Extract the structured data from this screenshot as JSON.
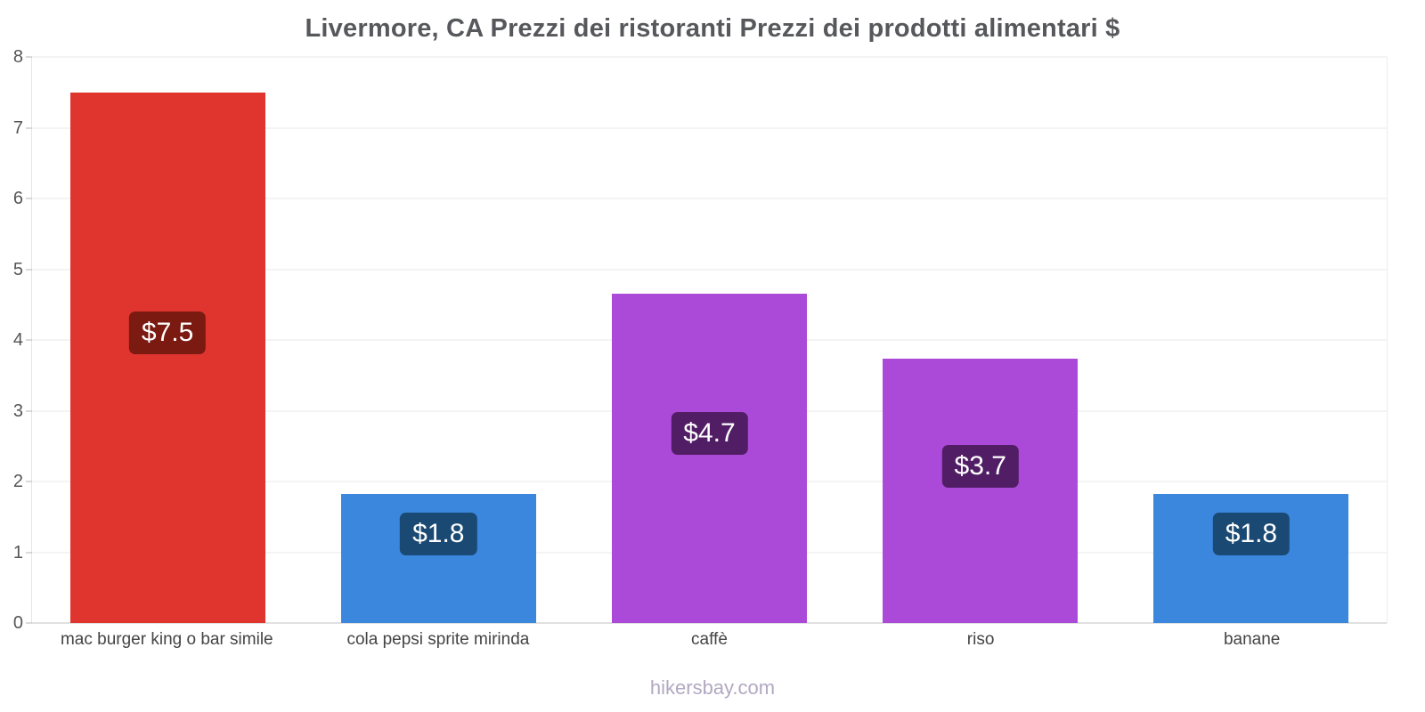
{
  "footer": "hikersbay.com",
  "chart_data": {
    "type": "bar",
    "title": "Livermore, CA Prezzi dei ristoranti Prezzi dei prodotti alimentari $",
    "categories": [
      "mac burger king o bar simile",
      "cola pepsi sprite mirinda",
      "caffè",
      "riso",
      "banane"
    ],
    "values": [
      7.5,
      1.82,
      4.65,
      3.73,
      1.82
    ],
    "labels": [
      "$7.5",
      "$1.8",
      "$4.7",
      "$3.7",
      "$1.8"
    ],
    "bar_colors": [
      "#e0352f",
      "#3a87dd",
      "#ab4ad8",
      "#ab4ad8",
      "#3a87dd"
    ],
    "label_bg_colors": [
      "#7a1a10",
      "#1a4a73",
      "#511e66",
      "#511e66",
      "#1a4a73"
    ],
    "xlabel": "",
    "ylabel": "",
    "ylim": [
      0,
      8
    ],
    "yticks": [
      0,
      1,
      2,
      3,
      4,
      5,
      6,
      7,
      8
    ],
    "grid": true,
    "legend": "none",
    "currency": "$"
  }
}
